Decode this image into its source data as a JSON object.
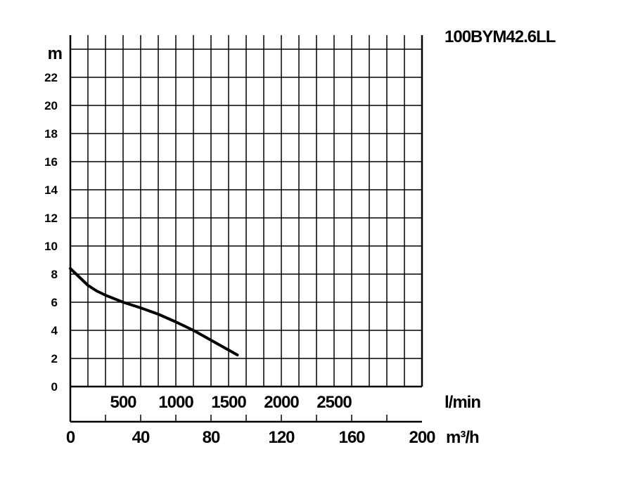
{
  "chart_data": {
    "type": "line",
    "title": "100BYM42.6LL",
    "ylabel": "m",
    "xlabel_flow": "l/min",
    "xlabel_flow2": "m³/h",
    "ylim": [
      0,
      24
    ],
    "xlim": [
      0,
      200
    ],
    "grid": true,
    "y_ticks": [
      "0",
      "2",
      "4",
      "6",
      "8",
      "10",
      "12",
      "14",
      "16",
      "18",
      "20",
      "22"
    ],
    "lmin_ticks": [
      "500",
      "1000",
      "1500",
      "2000",
      "2500"
    ],
    "m3h_ticks": [
      "0",
      "40",
      "80",
      "120",
      "160",
      "200"
    ],
    "series": [
      {
        "x": [
          0,
          5,
          10,
          15,
          20,
          30,
          40,
          50,
          60,
          70,
          80,
          90,
          95
        ],
        "y": [
          8.4,
          7.8,
          7.2,
          6.8,
          6.5,
          6.0,
          5.6,
          5.15,
          4.6,
          4.0,
          3.3,
          2.6,
          2.25
        ]
      }
    ]
  }
}
